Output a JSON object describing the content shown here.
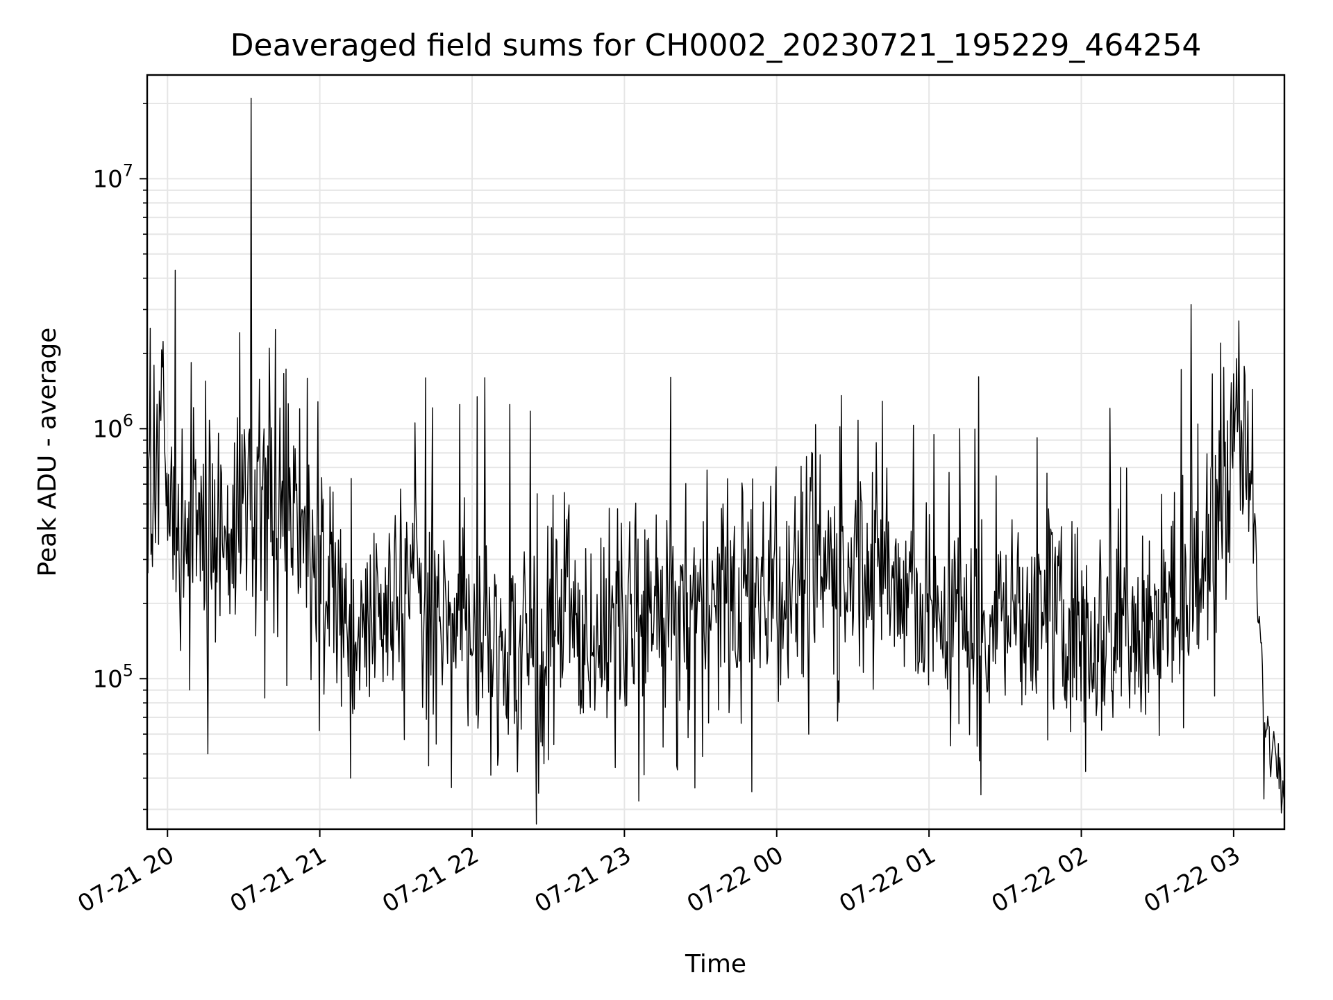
{
  "chart_data": {
    "type": "line",
    "title": "Deaveraged field sums for CH0002_20230721_195229_464254",
    "xlabel": "Time",
    "ylabel": "Peak ADU - average",
    "yscale": "log",
    "grid": true,
    "grid_minor": true,
    "line_color": "#000000",
    "grid_color": "#e6e6e6",
    "xlim": [
      "2023-07-21 19:52",
      "2023-07-22 03:20"
    ],
    "ylim": [
      25000,
      26000000
    ],
    "x_ticks": [
      {
        "t": "2023-07-21 20:00",
        "label": "07-21 20"
      },
      {
        "t": "2023-07-21 21:00",
        "label": "07-21 21"
      },
      {
        "t": "2023-07-21 22:00",
        "label": "07-21 22"
      },
      {
        "t": "2023-07-21 23:00",
        "label": "07-21 23"
      },
      {
        "t": "2023-07-22 00:00",
        "label": "07-22 00"
      },
      {
        "t": "2023-07-22 01:00",
        "label": "07-22 01"
      },
      {
        "t": "2023-07-22 02:00",
        "label": "07-22 02"
      },
      {
        "t": "2023-07-22 03:00",
        "label": "07-22 03"
      }
    ],
    "y_ticks": [
      {
        "value": 100000,
        "base": "10",
        "exp": "5"
      },
      {
        "value": 1000000,
        "base": "10",
        "exp": "6"
      },
      {
        "value": 10000000,
        "base": "10",
        "exp": "7"
      }
    ],
    "series": [
      {
        "x": [
          "2023-07-21 19:52",
          "2023-07-21 19:55",
          "2023-07-21 19:57",
          "2023-07-21 19:58",
          "2023-07-21 20:00",
          "2023-07-21 20:02",
          "2023-07-21 20:05",
          "2023-07-21 20:10",
          "2023-07-21 20:15",
          "2023-07-21 20:20",
          "2023-07-21 20:25",
          "2023-07-21 20:32",
          "2023-07-21 20:35",
          "2023-07-21 20:40",
          "2023-07-21 20:45",
          "2023-07-21 20:50",
          "2023-07-21 20:55",
          "2023-07-21 21:05",
          "2023-07-21 21:12",
          "2023-07-21 21:20",
          "2023-07-21 21:30",
          "2023-07-21 21:40",
          "2023-07-21 21:50",
          "2023-07-21 22:00",
          "2023-07-21 22:10",
          "2023-07-21 22:20",
          "2023-07-21 22:40",
          "2023-07-21 23:00",
          "2023-07-21 23:20",
          "2023-07-21 23:40",
          "2023-07-22 00:00",
          "2023-07-22 00:20",
          "2023-07-22 00:40",
          "2023-07-22 00:50",
          "2023-07-22 01:00",
          "2023-07-22 01:20",
          "2023-07-22 01:40",
          "2023-07-22 02:00",
          "2023-07-22 02:20",
          "2023-07-22 02:40",
          "2023-07-22 02:50",
          "2023-07-22 02:55",
          "2023-07-22 03:00",
          "2023-07-22 03:03",
          "2023-07-22 03:06",
          "2023-07-22 03:08",
          "2023-07-22 03:10",
          "2023-07-22 03:12",
          "2023-07-22 03:15",
          "2023-07-22 03:20"
        ],
        "y": [
          350000,
          700000,
          1200000,
          1000000,
          450000,
          350000,
          320000,
          380000,
          400000,
          420000,
          450000,
          550000,
          600000,
          550000,
          500000,
          420000,
          330000,
          220000,
          160000,
          170000,
          200000,
          220000,
          180000,
          150000,
          130000,
          130000,
          150000,
          160000,
          170000,
          200000,
          250000,
          280000,
          300000,
          220000,
          170000,
          180000,
          170000,
          160000,
          160000,
          200000,
          300000,
          450000,
          950000,
          950000,
          650000,
          450000,
          180000,
          75000,
          55000,
          42000
        ]
      }
    ],
    "spikes": [
      {
        "t": "2023-07-21 20:03",
        "y": 4300000
      },
      {
        "t": "2023-07-21 20:33",
        "y": 21000000
      },
      {
        "t": "2023-07-21 20:40",
        "y": 2100000
      },
      {
        "t": "2023-07-21 20:15",
        "y": 1550000
      },
      {
        "t": "2023-07-21 21:55",
        "y": 1250000
      },
      {
        "t": "2023-07-21 22:05",
        "y": 1600000
      },
      {
        "t": "2023-07-21 22:15",
        "y": 1250000
      },
      {
        "t": "2023-07-22 00:32",
        "y": 1080000
      },
      {
        "t": "2023-07-22 01:12",
        "y": 1000000
      },
      {
        "t": "2023-07-22 02:55",
        "y": 2200000
      },
      {
        "t": "2023-07-22 03:02",
        "y": 2700000
      },
      {
        "t": "2023-07-21 21:12",
        "y": 40000
      },
      {
        "t": "2023-07-21 20:16",
        "y": 50000
      },
      {
        "t": "2023-07-21 22:10",
        "y": 45000
      },
      {
        "t": "2023-07-22 03:12",
        "y": 33000
      }
    ]
  }
}
